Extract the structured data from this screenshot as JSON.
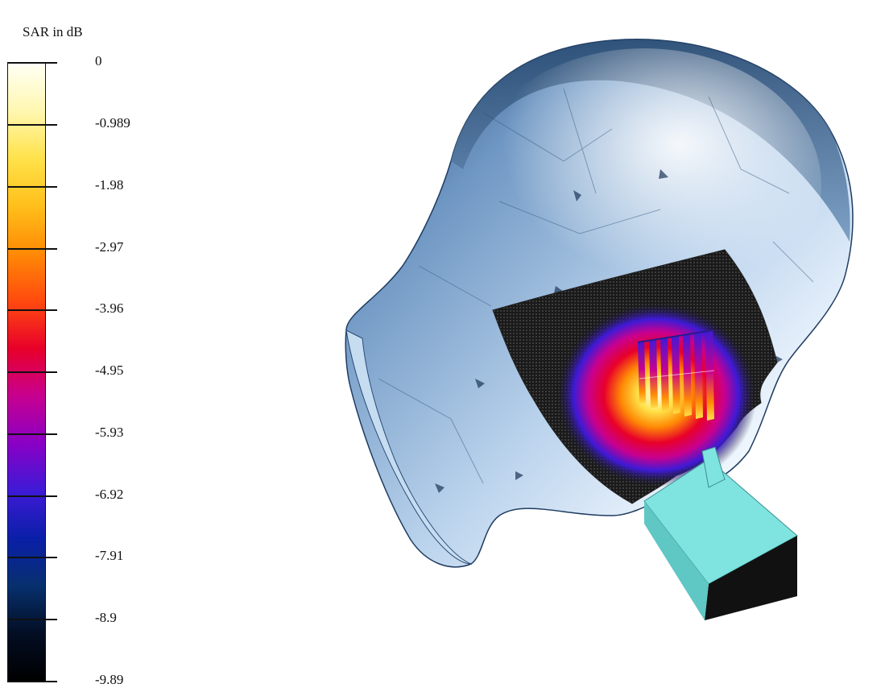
{
  "legend": {
    "title": "SAR in dB",
    "ticks": [
      "0",
      "-0.989",
      "-1.98",
      "-2.97",
      "-3.96",
      "-4.95",
      "-5.93",
      "-6.92",
      "-7.91",
      "-8.9",
      "-9.89"
    ],
    "colormap": [
      "#fffff4",
      "#fff7b0",
      "#ffe24a",
      "#ffbf1a",
      "#ff8a05",
      "#ff4a0f",
      "#e8002a",
      "#c8008f",
      "#8a00c5",
      "#3e1ad6",
      "#0a1fa8",
      "#07306e",
      "#030e24",
      "#000000"
    ]
  },
  "scene": {
    "head_color": "#8fb3d6",
    "head_shadow_color": "#1f3f66",
    "head_highlight_color": "#f2f8ff",
    "phone_color": "#7fe3e0",
    "phone_face_color": "#111111"
  }
}
